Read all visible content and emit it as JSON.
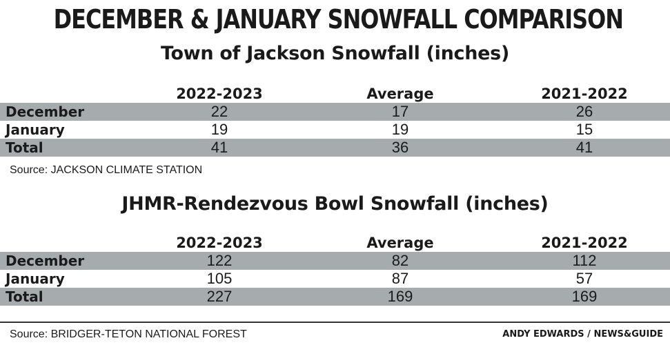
{
  "title": "DECEMBER & JANUARY SNOWFALL COMPARISON",
  "credit": "ANDY EDWARDS / NEWS&GUIDE",
  "chart_data": [
    {
      "type": "table",
      "title": "Town of Jackson Snowfall (inches)",
      "columns": [
        "2022-2023",
        "Average",
        "2021-2022"
      ],
      "rows": [
        {
          "label": "December",
          "values": [
            "22",
            "17",
            "26"
          ]
        },
        {
          "label": "January",
          "values": [
            "19",
            "19",
            "15"
          ]
        },
        {
          "label": "Total",
          "values": [
            "41",
            "36",
            "41"
          ]
        }
      ],
      "source": "Source: JACKSON CLIMATE STATION"
    },
    {
      "type": "table",
      "title": "JHMR-Rendezvous Bowl Snowfall (inches)",
      "columns": [
        "2022-2023",
        "Average",
        "2021-2022"
      ],
      "rows": [
        {
          "label": "December",
          "values": [
            "122",
            "82",
            "112"
          ]
        },
        {
          "label": "January",
          "values": [
            "105",
            "87",
            "57"
          ]
        },
        {
          "label": "Total",
          "values": [
            "227",
            "169",
            "169"
          ]
        }
      ],
      "source": "Source: BRIDGER-TETON NATIONAL FOREST"
    }
  ]
}
